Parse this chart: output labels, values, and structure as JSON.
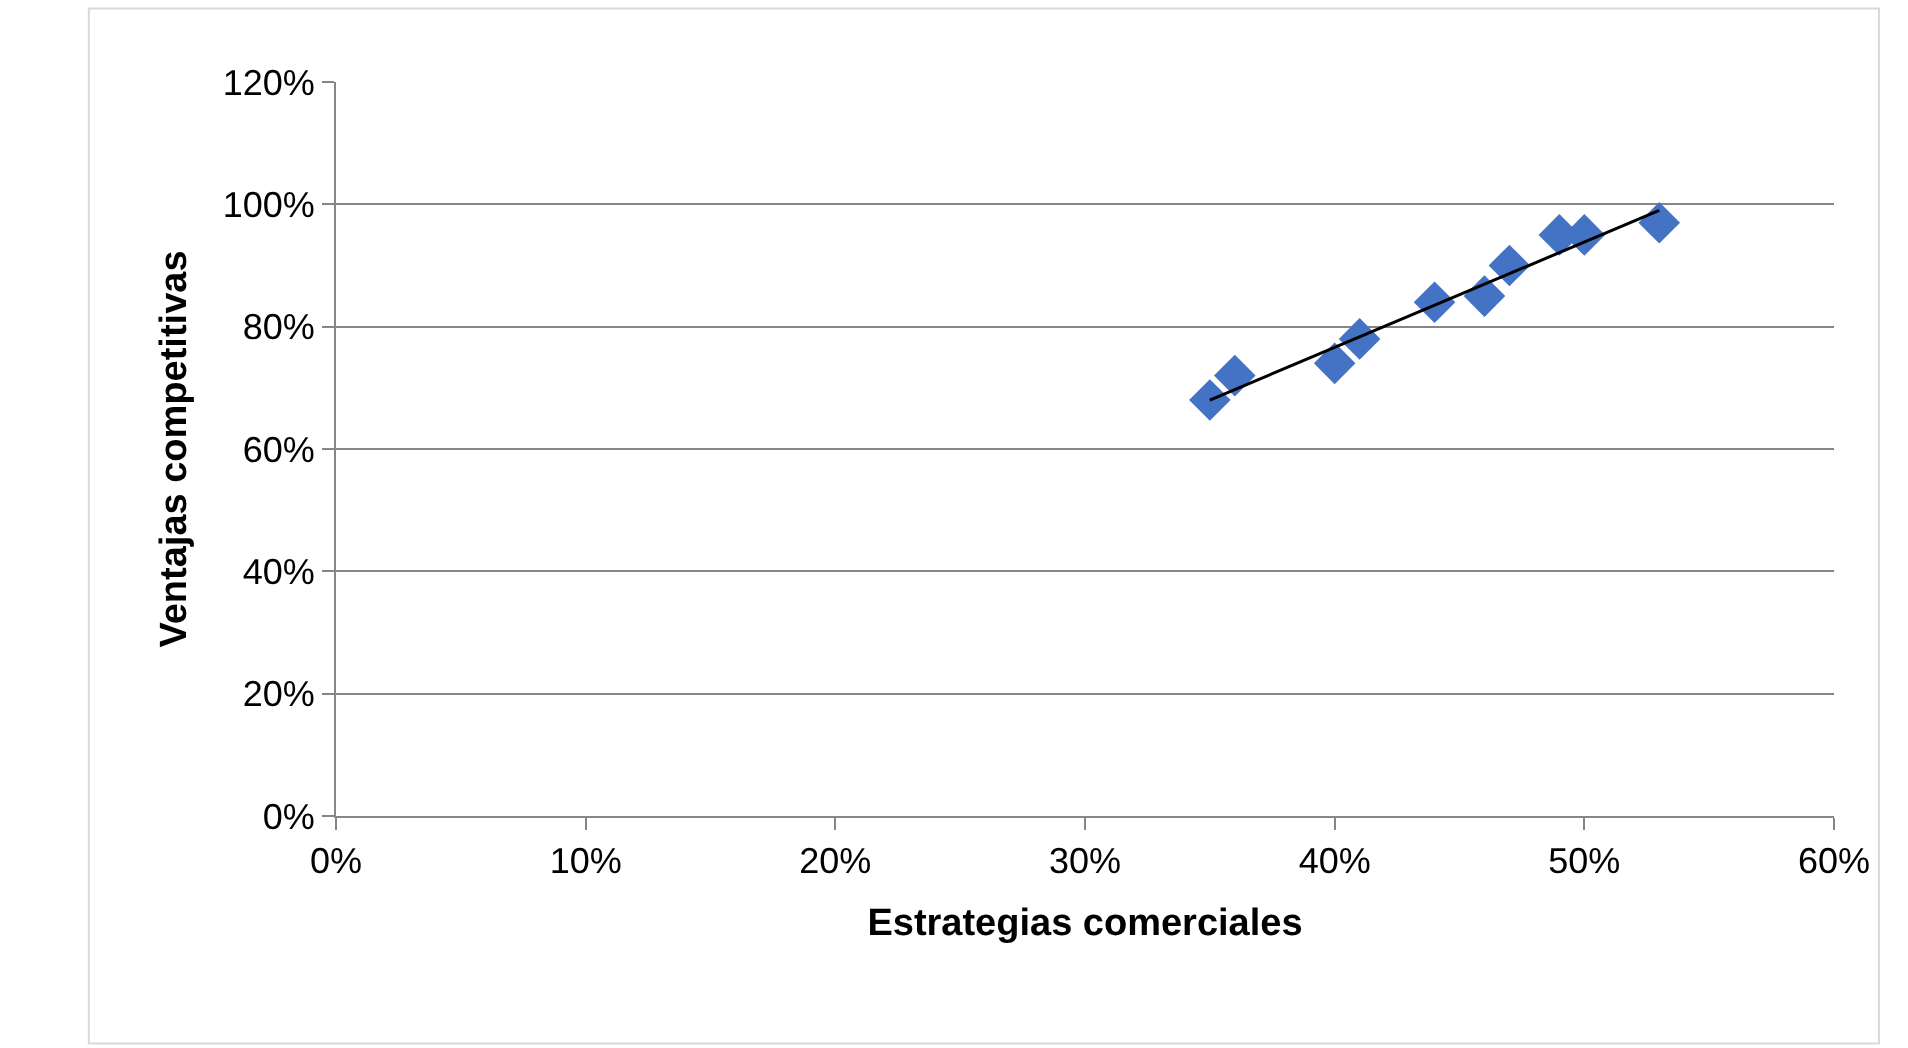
{
  "chart_data": {
    "type": "scatter",
    "xlabel": "Estrategias comerciales",
    "ylabel": "Ventajas competitivas",
    "series": [
      {
        "color": "#4472c4",
        "marker": "diamond",
        "x": [
          35,
          36,
          40,
          41,
          44,
          46,
          47,
          49,
          50,
          53
        ],
        "values": [
          68,
          72,
          74,
          78,
          84,
          85,
          90,
          95,
          95,
          97
        ]
      },
      {
        "type": "line",
        "color": "#000000",
        "line_style": "solid",
        "x": [
          35,
          53
        ],
        "values": [
          68,
          99
        ]
      }
    ],
    "xlim": [
      0,
      60
    ],
    "ylim": [
      0,
      120
    ],
    "xticks": [
      {
        "value": 0,
        "label": "0%"
      },
      {
        "value": 10,
        "label": "10%"
      },
      {
        "value": 20,
        "label": "20%"
      },
      {
        "value": 30,
        "label": "30%"
      },
      {
        "value": 40,
        "label": "40%"
      },
      {
        "value": 50,
        "label": "50%"
      },
      {
        "value": 60,
        "label": "60%"
      }
    ],
    "yticks": [
      {
        "value": 0,
        "label": "0%"
      },
      {
        "value": 20,
        "label": "20%"
      },
      {
        "value": 40,
        "label": "40%"
      },
      {
        "value": 60,
        "label": "60%"
      },
      {
        "value": 80,
        "label": "80%"
      },
      {
        "value": 100,
        "label": "100%"
      },
      {
        "value": 120,
        "label": "120%"
      }
    ],
    "grid": "y"
  }
}
